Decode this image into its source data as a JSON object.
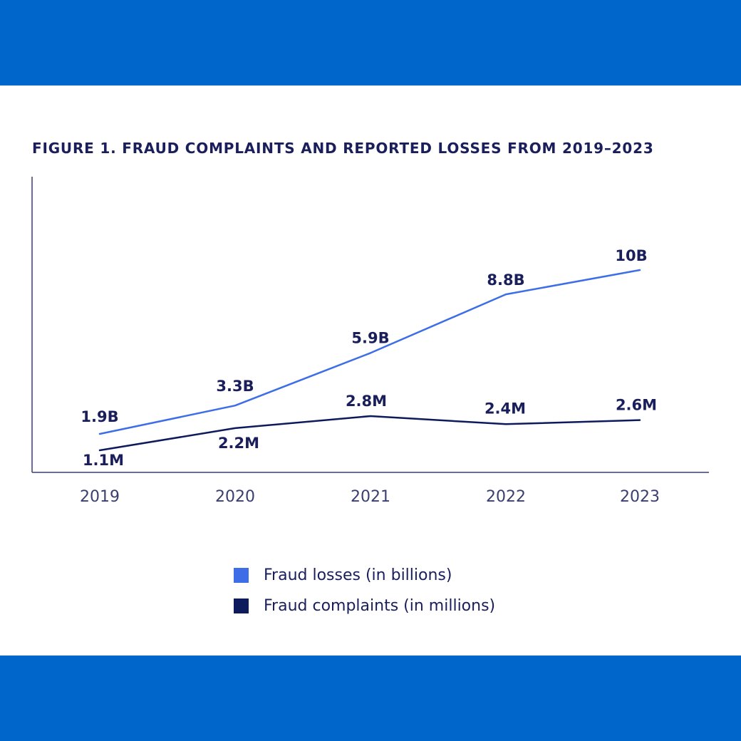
{
  "colors": {
    "band": "#0066cc",
    "title": "#1a1f5c",
    "axis": "#3a3f6e",
    "losses": "#3d6ee8",
    "complaints": "#0d1a5c",
    "label": "#1a1f5c",
    "tick": "#3a3f6e"
  },
  "chart_data": {
    "type": "line",
    "title": "FIGURE 1. FRAUD COMPLAINTS AND REPORTED LOSSES FROM 2019–2023",
    "xlabel": "",
    "ylabel": "",
    "categories": [
      "2019",
      "2020",
      "2021",
      "2022",
      "2023"
    ],
    "grid": false,
    "legend_position": "bottom-center",
    "series": [
      {
        "name": "Fraud losses (in billions)",
        "color": "#3d6ee8",
        "values": [
          1.9,
          3.3,
          5.9,
          8.8,
          10
        ],
        "labels": [
          "1.9B",
          "3.3B",
          "5.9B",
          "8.8B",
          "10B"
        ]
      },
      {
        "name": "Fraud complaints (in millions)",
        "color": "#0d1a5c",
        "values": [
          1.1,
          2.2,
          2.8,
          2.4,
          2.6
        ],
        "labels": [
          "1.1M",
          "2.2M",
          "2.8M",
          "2.4M",
          "2.6M"
        ]
      }
    ]
  }
}
